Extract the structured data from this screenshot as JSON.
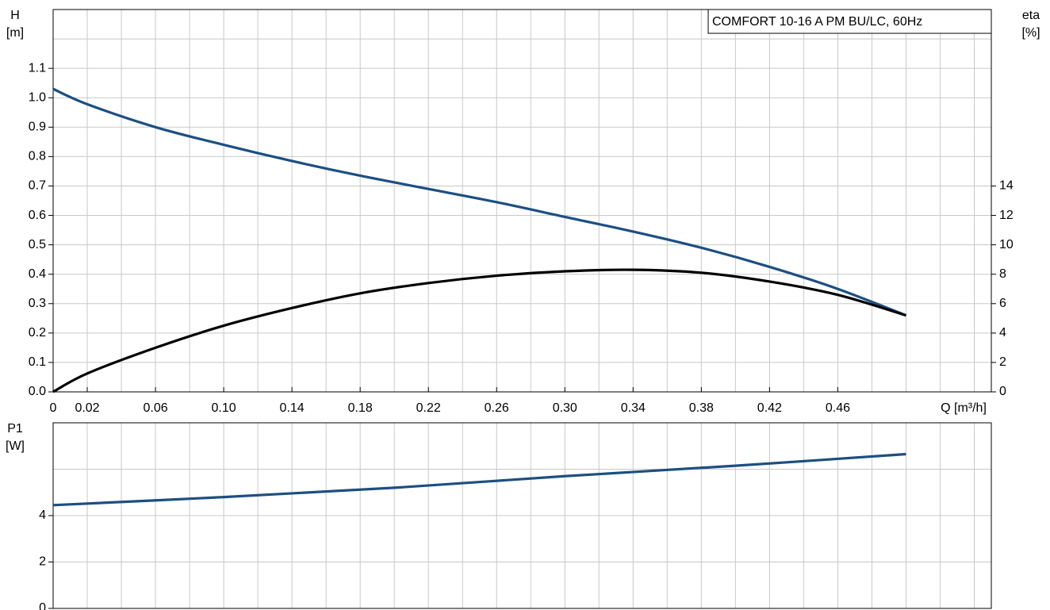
{
  "chart_data": [
    {
      "type": "line",
      "title": "COMFORT 10-16 A PM BU/LC, 60Hz",
      "ylabel": "H",
      "yunit": "[m]",
      "y2label": "eta",
      "y2unit": "[%]",
      "xlabel": "Q [m³/h]",
      "x": [
        0,
        0.02,
        0.06,
        0.1,
        0.14,
        0.18,
        0.22,
        0.26,
        0.3,
        0.34,
        0.38,
        0.42,
        0.46,
        0.5
      ],
      "series": [
        {
          "name": "H",
          "color": "#1c4f82",
          "values": [
            1.03,
            0.978,
            0.9,
            0.84,
            0.785,
            0.735,
            0.69,
            0.645,
            0.595,
            0.545,
            0.49,
            0.425,
            0.35,
            0.26
          ]
        },
        {
          "name": "eta",
          "color": "#000000",
          "axis": "y2",
          "values": [
            0,
            1.25,
            3.0,
            4.5,
            5.7,
            6.7,
            7.4,
            7.9,
            8.2,
            8.3,
            8.1,
            7.5,
            6.6,
            5.2
          ]
        }
      ],
      "xlim": [
        0,
        0.55
      ],
      "xticks": [
        0,
        0.02,
        0.06,
        {
          "value": 0.1,
          "label": "0.10"
        },
        0.14,
        0.18,
        0.22,
        0.26,
        {
          "value": 0.3,
          "label": "0.30"
        },
        0.34,
        0.38,
        0.42,
        0.46
      ],
      "xgrid": [
        0.02,
        0.04,
        0.06,
        0.08,
        0.1,
        0.12,
        0.14,
        0.16,
        0.18,
        0.2,
        0.22,
        0.24,
        0.26,
        0.28,
        0.3,
        0.32,
        0.34,
        0.36,
        0.38,
        0.4,
        0.42,
        0.44,
        0.46,
        0.48,
        0.5,
        0.52,
        0.54
      ],
      "ylim": [
        0,
        1.3
      ],
      "yticks": [
        {
          "value": 0,
          "label": "0.0"
        },
        0.1,
        0.2,
        0.3,
        0.4,
        0.5,
        0.6,
        0.7,
        0.8,
        0.9,
        {
          "value": 1,
          "label": "1.0"
        },
        1.1
      ],
      "ygrid": [
        0.1,
        0.2,
        0.3,
        0.4,
        0.5,
        0.6,
        0.7,
        0.8,
        0.9,
        1,
        1.1,
        1.2
      ],
      "y2lim": [
        0,
        26
      ],
      "y2ticks": [
        0,
        2,
        4,
        6,
        8,
        10,
        12,
        14
      ]
    },
    {
      "type": "line",
      "ylabel": "P1",
      "yunit": "[W]",
      "x": [
        0,
        0.1,
        0.2,
        0.3,
        0.4,
        0.5
      ],
      "series": [
        {
          "name": "P1",
          "color": "#1c4f82",
          "values": [
            4.45,
            4.8,
            5.2,
            5.7,
            6.15,
            6.65
          ]
        }
      ],
      "xlim": [
        0,
        0.55
      ],
      "xgrid": [
        0.02,
        0.04,
        0.06,
        0.08,
        0.1,
        0.12,
        0.14,
        0.16,
        0.18,
        0.2,
        0.22,
        0.24,
        0.26,
        0.28,
        0.3,
        0.32,
        0.34,
        0.36,
        0.38,
        0.4,
        0.42,
        0.44,
        0.46,
        0.48,
        0.5,
        0.52,
        0.54
      ],
      "ylim": [
        0,
        8
      ],
      "yticks": [
        0,
        2,
        4
      ],
      "ygrid": [
        2,
        4,
        6
      ]
    }
  ]
}
